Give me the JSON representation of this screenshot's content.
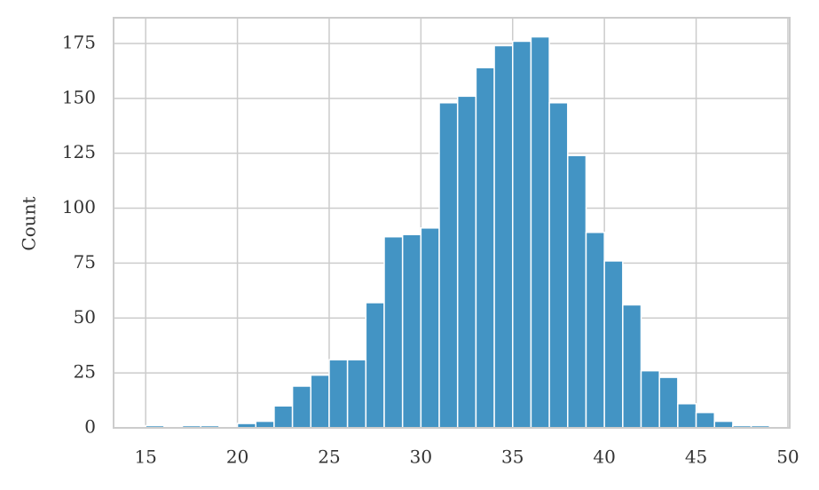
{
  "chart_data": {
    "type": "histogram",
    "y_label": "Count",
    "bins": [
      15,
      16,
      17,
      18,
      19,
      20,
      21,
      22,
      23,
      24,
      25,
      26,
      27,
      28,
      29,
      30,
      31,
      32,
      33,
      34,
      35,
      36,
      37,
      38,
      39,
      40,
      41,
      42,
      43,
      44,
      45,
      46,
      47,
      48,
      49
    ],
    "values": [
      1,
      0,
      1,
      1,
      0,
      2,
      3,
      10,
      19,
      24,
      31,
      31,
      57,
      87,
      88,
      91,
      148,
      151,
      164,
      174,
      176,
      178,
      148,
      124,
      89,
      76,
      56,
      26,
      23,
      11,
      7,
      3,
      1,
      1
    ],
    "color": "#4394c4",
    "xlim": [
      13.25,
      50.1
    ],
    "xticks": [
      15,
      20,
      25,
      30,
      35,
      40,
      45,
      50
    ],
    "ylim": [
      0,
      186.7
    ],
    "yticks": [
      0,
      25,
      50,
      75,
      100,
      125,
      150,
      175
    ],
    "grid": true
  }
}
